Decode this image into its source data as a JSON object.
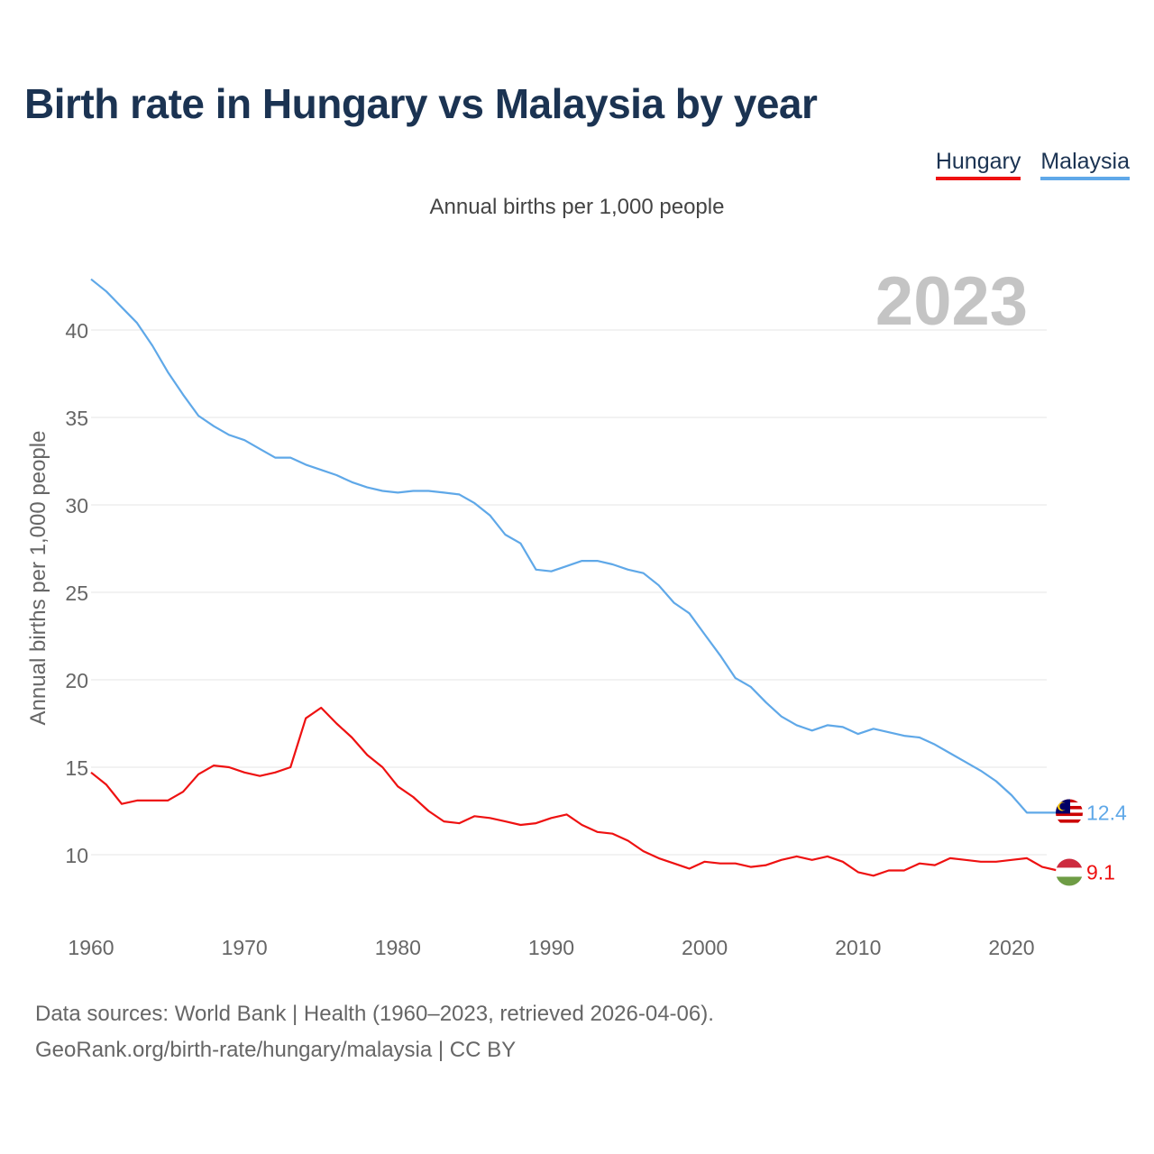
{
  "title": "Birth rate in Hungary vs Malaysia by year",
  "legend": {
    "hungary": "Hungary",
    "malaysia": "Malaysia"
  },
  "subtitle": "Annual births per 1,000 people",
  "footer": {
    "line1": "Data sources: World Bank | Health (1960–2023, retrieved 2026-04-06).",
    "line2": "GeoRank.org/birth-rate/hungary/malaysia | CC BY"
  },
  "colors": {
    "hungary": "#ee1111",
    "malaysia": "#5fa8e8",
    "grid": "#e4e4e4",
    "year": "#c4c4c4",
    "axis_text": "#666666"
  },
  "chart_data": {
    "type": "line",
    "title": "Birth rate in Hungary vs Malaysia by year",
    "ylabel": "Annual births per 1,000 people",
    "xlabel": "",
    "year_label": "2023",
    "xlim": [
      1960,
      2023
    ],
    "ylim": [
      6,
      44
    ],
    "x_ticks": [
      1960,
      1970,
      1980,
      1990,
      2000,
      2010,
      2020
    ],
    "y_ticks": [
      10,
      15,
      20,
      25,
      30,
      35,
      40
    ],
    "x": [
      1960,
      1961,
      1962,
      1963,
      1964,
      1965,
      1966,
      1967,
      1968,
      1969,
      1970,
      1971,
      1972,
      1973,
      1974,
      1975,
      1976,
      1977,
      1978,
      1979,
      1980,
      1981,
      1982,
      1983,
      1984,
      1985,
      1986,
      1987,
      1988,
      1989,
      1990,
      1991,
      1992,
      1993,
      1994,
      1995,
      1996,
      1997,
      1998,
      1999,
      2000,
      2001,
      2002,
      2003,
      2004,
      2005,
      2006,
      2007,
      2008,
      2009,
      2010,
      2011,
      2012,
      2013,
      2014,
      2015,
      2016,
      2017,
      2018,
      2019,
      2020,
      2021,
      2022,
      2023
    ],
    "series": [
      {
        "name": "Malaysia",
        "end_label": "12.4",
        "values": [
          42.9,
          42.2,
          41.3,
          40.4,
          39.1,
          37.6,
          36.3,
          35.1,
          34.5,
          34.0,
          33.7,
          33.2,
          32.7,
          32.7,
          32.3,
          32.0,
          31.7,
          31.3,
          31.0,
          30.8,
          30.7,
          30.8,
          30.8,
          30.7,
          30.6,
          30.1,
          29.4,
          28.3,
          27.8,
          26.3,
          26.2,
          26.5,
          26.8,
          26.8,
          26.6,
          26.3,
          26.1,
          25.4,
          24.4,
          23.8,
          22.6,
          21.4,
          20.1,
          19.6,
          18.7,
          17.9,
          17.4,
          17.1,
          17.4,
          17.3,
          16.9,
          17.2,
          17.0,
          16.8,
          16.7,
          16.3,
          15.8,
          15.3,
          14.8,
          14.2,
          13.4,
          12.4,
          12.4,
          12.4
        ]
      },
      {
        "name": "Hungary",
        "end_label": "9.1",
        "values": [
          14.7,
          14.0,
          12.9,
          13.1,
          13.1,
          13.1,
          13.6,
          14.6,
          15.1,
          15.0,
          14.7,
          14.5,
          14.7,
          15.0,
          17.8,
          18.4,
          17.5,
          16.7,
          15.7,
          15.0,
          13.9,
          13.3,
          12.5,
          11.9,
          11.8,
          12.2,
          12.1,
          11.9,
          11.7,
          11.8,
          12.1,
          12.3,
          11.7,
          11.3,
          11.2,
          10.8,
          10.2,
          9.8,
          9.5,
          9.2,
          9.6,
          9.5,
          9.5,
          9.3,
          9.4,
          9.7,
          9.9,
          9.7,
          9.9,
          9.6,
          9.0,
          8.8,
          9.1,
          9.1,
          9.5,
          9.4,
          9.8,
          9.7,
          9.6,
          9.6,
          9.7,
          9.8,
          9.3,
          9.1
        ]
      }
    ]
  }
}
